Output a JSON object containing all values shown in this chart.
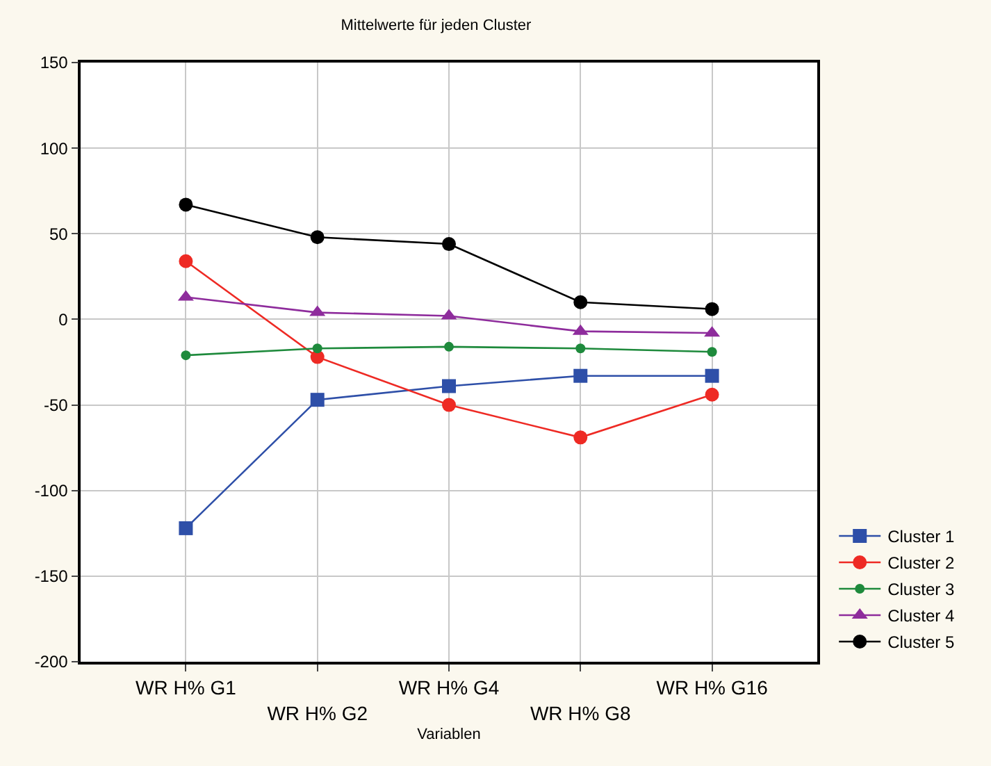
{
  "chart_data": {
    "type": "line",
    "title": "Mittelwerte für jeden Cluster",
    "xlabel": "Variablen",
    "categories": [
      "WR H% G1",
      "WR H% G2",
      "WR H% G4",
      "WR H% G8",
      "WR H% G16"
    ],
    "ylim": [
      -200,
      150
    ],
    "yticks": [
      -200,
      -150,
      -100,
      -50,
      0,
      50,
      100,
      150
    ],
    "grid": true,
    "legend": "bottom right",
    "series": [
      {
        "name": "Cluster 1",
        "color": "#2e4fa8",
        "marker": "square",
        "values": [
          -122,
          -47,
          -39,
          -33,
          -33
        ]
      },
      {
        "name": "Cluster 2",
        "color": "#ee2a24",
        "marker": "circle",
        "values": [
          34,
          -22,
          -50,
          -69,
          -44
        ]
      },
      {
        "name": "Cluster 3",
        "color": "#1e8a3c",
        "marker": "circle",
        "values": [
          -21,
          -17,
          -16,
          -17,
          -19
        ]
      },
      {
        "name": "Cluster 4",
        "color": "#8e2c9c",
        "marker": "triangle",
        "values": [
          13,
          4,
          2,
          -7,
          -8
        ]
      },
      {
        "name": "Cluster 5",
        "color": "#000000",
        "marker": "circle",
        "values": [
          67,
          48,
          44,
          10,
          6
        ]
      }
    ]
  }
}
